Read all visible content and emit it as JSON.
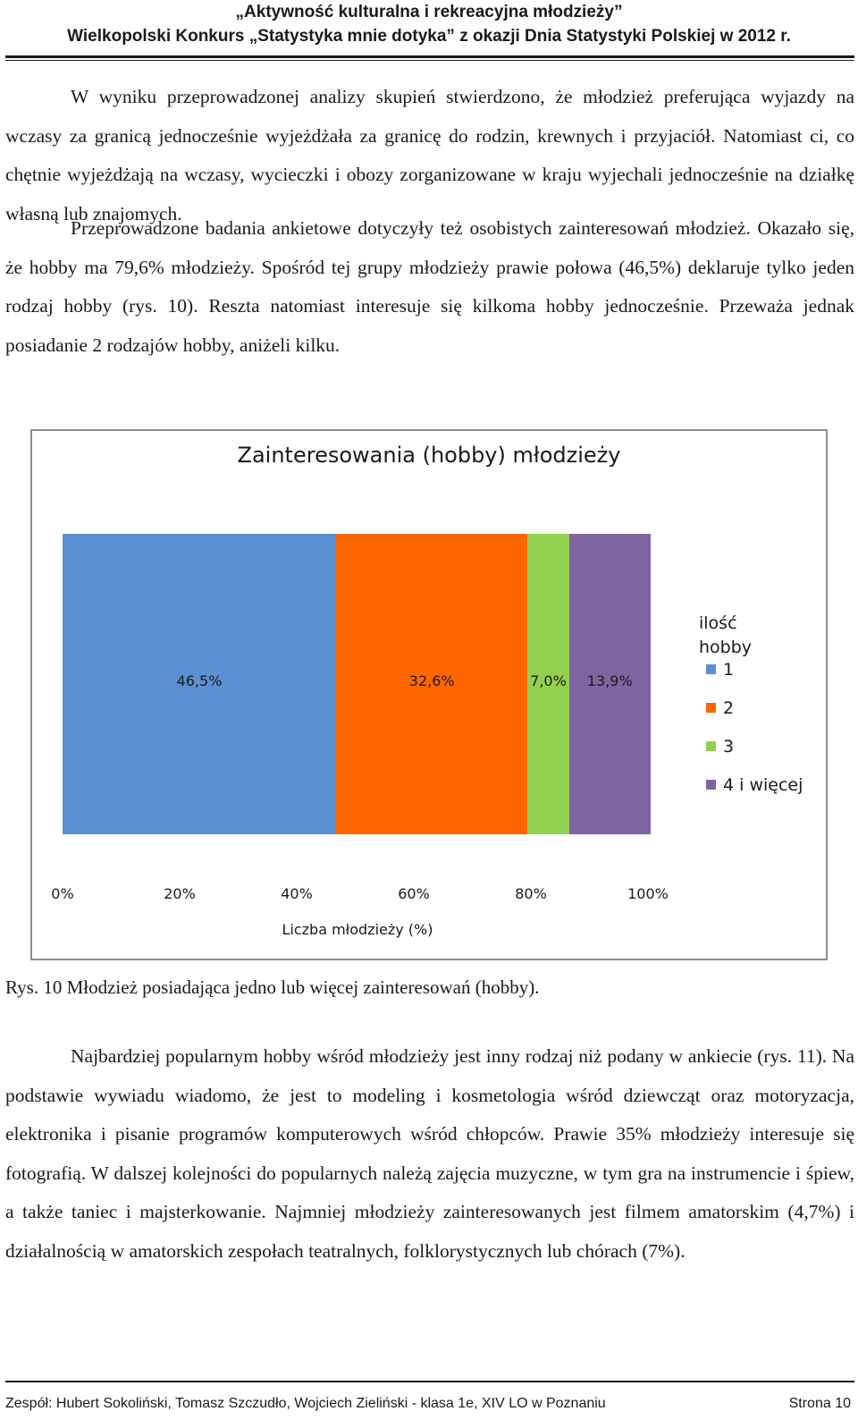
{
  "header": {
    "line1": "„Aktywność kulturalna i rekreacyjna młodzieży”",
    "line2": "Wielkopolski Konkurs „Statystyka mnie dotyka” z okazji Dnia Statystyki Polskiej w 2012 r."
  },
  "paragraphs": {
    "p1": "W wyniku przeprowadzonej analizy skupień stwierdzono, że młodzież preferująca wyjazdy na wczasy za granicą jednocześnie wyjeżdżała za granicę do rodzin, krewnych i przyjaciół. Natomiast ci, co chętnie wyjeżdżają na wczasy, wycieczki i obozy zorganizowane w kraju wyjechali jednocześnie na działkę własną lub znajomych.",
    "p2": "Przeprowadzone badania ankietowe dotyczyły też osobistych zainteresowań młodzież. Okazało się, że hobby ma 79,6% młodzieży. Spośród tej grupy młodzieży prawie połowa (46,5%) deklaruje tylko jeden rodzaj hobby (rys. 10). Reszta natomiast interesuje się kilkoma hobby jednocześnie. Przeważa jednak posiadanie 2 rodzajów hobby, aniżeli kilku.",
    "p3": "Najbardziej popularnym hobby wśród młodzieży jest inny rodzaj niż podany w ankiecie (rys. 11). Na podstawie wywiadu wiadomo, że jest to modeling i kosmetologia wśród dziewcząt oraz motoryzacja, elektronika i pisanie programów komputerowych wśród chłopców. Prawie 35% młodzieży interesuje się fotografią. W dalszej kolejności do popularnych należą zajęcia muzyczne, w tym gra na instrumencie i śpiew, a także taniec i majsterkowanie. Najmniej młodzieży zainteresowanych jest filmem amatorskim (4,7%) i działalnością w amatorskich zespołach teatralnych, folklorystycznych lub chórach (7%)."
  },
  "chart_data": {
    "type": "bar",
    "orientation": "horizontal-stacked-100",
    "title": "Zainteresowania (hobby) młodzieży",
    "xlabel": "Liczba młodzieży (%)",
    "xlim": [
      0,
      100
    ],
    "x_ticks": [
      "0%",
      "20%",
      "40%",
      "60%",
      "80%",
      "100%"
    ],
    "legend_title": "ilość hobby",
    "legend_position": "right",
    "series": [
      {
        "name": "1",
        "value": 46.5,
        "label": "46,5%",
        "color": "#5b8fd4"
      },
      {
        "name": "2",
        "value": 32.6,
        "label": "32,6%",
        "color": "#ff6600"
      },
      {
        "name": "3",
        "value": 7.0,
        "label": "7,0%",
        "color": "#92d050"
      },
      {
        "name": "4 i więcej",
        "value": 13.9,
        "label": "13,9%",
        "color": "#8064a2"
      }
    ]
  },
  "caption": "Rys. 10 Młodzież posiadająca jedno lub więcej zainteresowań (hobby).",
  "footer": {
    "authors": "Zespół: Hubert Sokoliński, Tomasz Szczudło, Wojciech Zieliński - klasa 1e, XIV LO w Poznaniu",
    "page": "Strona 10"
  }
}
